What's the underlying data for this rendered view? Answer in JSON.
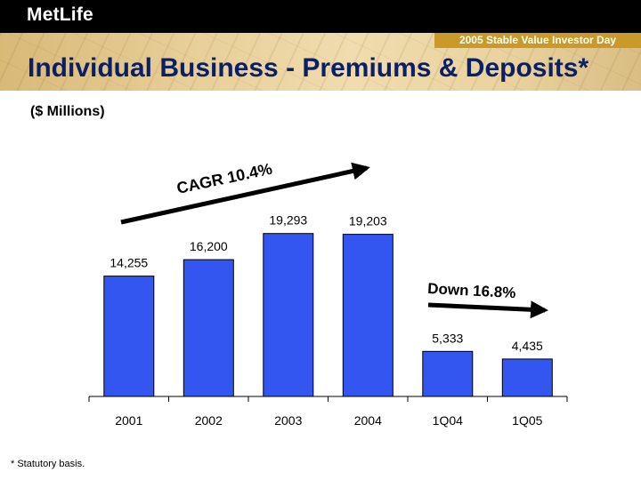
{
  "header": {
    "logo_text": "MetLife",
    "event": "2005 Stable Value Investor Day"
  },
  "slide": {
    "title": "Individual Business - Premiums & Deposits*",
    "subtitle": "($ Millions)",
    "footnote": "* Statutory basis."
  },
  "annotations": {
    "cagr": "CAGR 10.4%",
    "down": "Down 16.8%"
  },
  "colors": {
    "bar": "#3356f0",
    "title": "#0b1f66",
    "accent": "#c99a2a"
  },
  "chart_data": {
    "type": "bar",
    "categories": [
      "2001",
      "2002",
      "2003",
      "2004",
      "1Q04",
      "1Q05"
    ],
    "values": [
      14255,
      16200,
      19293,
      19203,
      5333,
      4435
    ],
    "value_labels": [
      "14,255",
      "16,200",
      "19,293",
      "19,203",
      "5,333",
      "4,435"
    ],
    "ylim": [
      0,
      20000
    ],
    "grid": false,
    "xlabel": "",
    "ylabel": ""
  }
}
